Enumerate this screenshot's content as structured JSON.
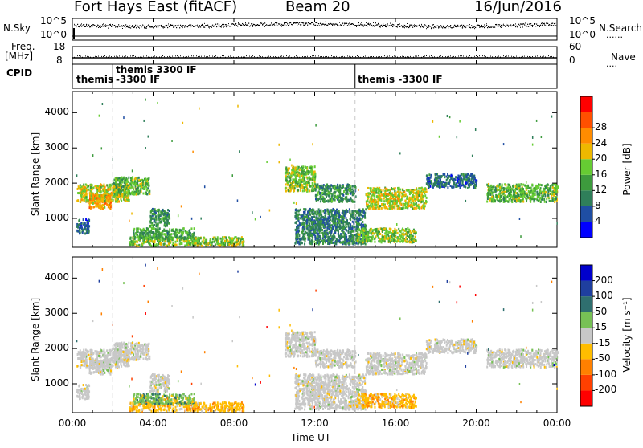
{
  "header": {
    "station": "Fort Hays East (fitACF)",
    "beam": "Beam 20",
    "date": "16/Jun/2016"
  },
  "noise_panel": {
    "left_label": "N.Sky",
    "left_ticks": [
      "10^5",
      "10^0"
    ],
    "right_ticks": [
      "10^5",
      "10^0"
    ],
    "right_label": "N.Search"
  },
  "freq_panel": {
    "left_label_1": "Freq.",
    "left_label_2": "[MHz]",
    "left_ticks": [
      "18",
      "8"
    ],
    "right_ticks": [
      "60",
      "0"
    ],
    "right_label": "Nave"
  },
  "cpid_panel": {
    "label": "CPID",
    "segments": [
      {
        "label": "themis",
        "start_h": 0.0
      },
      {
        "label": "themis 3300 IF",
        "start_h": 2.0
      },
      {
        "label": "-3300 IF",
        "start_h": 2.0
      },
      {
        "label": "themis -3300 IF",
        "start_h": 14.0
      }
    ]
  },
  "x_axis": {
    "label": "Time UT",
    "tick_labels": [
      "00:00",
      "04:00",
      "08:00",
      "12:00",
      "16:00",
      "20:00",
      "00:00"
    ],
    "range_h": [
      0,
      24
    ]
  },
  "power_panel": {
    "ylabel": "Slant Range [km]",
    "yticks": [
      "1000",
      "2000",
      "3000",
      "4000"
    ],
    "ylim_km": [
      180,
      4600
    ],
    "colorbar_label": "Power [dB]",
    "colorbar_ticks": [
      "4",
      "8",
      "12",
      "16",
      "20",
      "24",
      "28"
    ]
  },
  "velocity_panel": {
    "ylabel": "Slant Range [km]",
    "yticks": [
      "1000",
      "2000",
      "3000",
      "4000"
    ],
    "ylim_km": [
      180,
      4600
    ],
    "colorbar_label": "Velocity [m s⁻¹]",
    "colorbar_ticks": [
      "200",
      "100",
      "50",
      "15",
      "-15",
      "-50",
      "-100",
      "-200"
    ]
  },
  "colors": {
    "power_scale": [
      "#0000ff",
      "#1f4ea3",
      "#2f7f5a",
      "#3d9b3d",
      "#66cc33",
      "#eeb800",
      "#ff8c00",
      "#ff5000",
      "#ff0000"
    ],
    "velocity_scale": [
      "#0000cc",
      "#1f3f9f",
      "#2f6f6f",
      "#77c155",
      "#c8c8c8",
      "#ffbd00",
      "#ff8000",
      "#ff4000",
      "#ff0000"
    ],
    "dashed_line": "#c8c8c8"
  },
  "chart_data": {
    "type": "heatmap",
    "x_unit": "hours UT",
    "y_unit": "slant range km",
    "echo_regions": [
      {
        "t0": 0.2,
        "t1": 2.8,
        "r0": 1500,
        "r1": 2000,
        "power": 18,
        "vel": "ground"
      },
      {
        "t0": 0.8,
        "t1": 1.9,
        "r0": 1300,
        "r1": 1700,
        "power": 22,
        "vel": "ground"
      },
      {
        "t0": 2.0,
        "t1": 3.8,
        "r0": 1700,
        "r1": 2200,
        "power": 14,
        "vel": "ground"
      },
      {
        "t0": 0.2,
        "t1": 0.8,
        "r0": 600,
        "r1": 1000,
        "power": 6,
        "vel": "ground"
      },
      {
        "t0": 3.8,
        "t1": 4.8,
        "r0": 800,
        "r1": 1300,
        "power": 10,
        "vel": "ground"
      },
      {
        "t0": 2.8,
        "t1": 8.5,
        "r0": 250,
        "r1": 500,
        "power": 16,
        "vel": "neg"
      },
      {
        "t0": 3.0,
        "t1": 6.0,
        "r0": 450,
        "r1": 750,
        "power": 12,
        "vel": "pos"
      },
      {
        "t0": 10.5,
        "t1": 12.0,
        "r0": 1800,
        "r1": 2500,
        "power": 16,
        "vel": "ground"
      },
      {
        "t0": 12.0,
        "t1": 14.0,
        "r0": 1500,
        "r1": 2000,
        "power": 10,
        "vel": "ground"
      },
      {
        "t0": 11.0,
        "t1": 14.5,
        "r0": 300,
        "r1": 1300,
        "power": 8,
        "vel": "ground"
      },
      {
        "t0": 14.5,
        "t1": 17.5,
        "r0": 1300,
        "r1": 1900,
        "power": 18,
        "vel": "ground"
      },
      {
        "t0": 14.0,
        "t1": 17.0,
        "r0": 350,
        "r1": 750,
        "power": 16,
        "vel": "neg"
      },
      {
        "t0": 17.5,
        "t1": 20.0,
        "r0": 1900,
        "r1": 2300,
        "power": 6,
        "vel": "ground"
      },
      {
        "t0": 20.5,
        "t1": 24.0,
        "r0": 1500,
        "r1": 2000,
        "power": 14,
        "vel": "ground"
      }
    ]
  }
}
